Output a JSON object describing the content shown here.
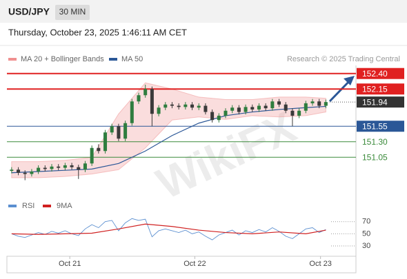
{
  "header": {
    "symbol": "USD/JPY",
    "interval": "30 MIN",
    "timestamp": "Thursday, October 23, 2025 1:46:11 AM CET",
    "watermark": "WikiFX"
  },
  "chart_data": [
    {
      "type": "candlestick",
      "source": "Research © 2025 Trading Central",
      "xlim": [
        -0.5,
        51.5
      ],
      "ylim": [
        150.42,
        152.53
      ],
      "xticks": [
        {
          "value": 8.7,
          "label": "Oct 21"
        },
        {
          "value": 27.4,
          "label": "Oct 22"
        },
        {
          "value": 46.2,
          "label": "Oct 23"
        }
      ],
      "up_color": "#2f7d3f",
      "down_color": "#3a3a3a",
      "candles": {
        "open": [
          150.83,
          150.85,
          150.8,
          150.78,
          150.82,
          150.88,
          150.86,
          150.9,
          150.88,
          150.92,
          150.89,
          150.85,
          150.95,
          151.2,
          151.15,
          151.45,
          151.55,
          151.35,
          151.6,
          151.95,
          152.05,
          152.15,
          151.75,
          151.85,
          151.9,
          151.88,
          151.86,
          151.9,
          151.85,
          151.88,
          151.78,
          151.65,
          151.72,
          151.8,
          151.85,
          151.78,
          151.86,
          151.82,
          151.88,
          151.84,
          151.95,
          151.9,
          151.8,
          151.72,
          151.8,
          151.92,
          151.95,
          151.88
        ],
        "high": [
          150.89,
          150.89,
          150.84,
          150.86,
          150.92,
          150.92,
          150.94,
          150.94,
          150.96,
          150.96,
          150.93,
          150.99,
          151.24,
          151.26,
          151.49,
          151.59,
          151.59,
          151.64,
          151.99,
          152.09,
          152.22,
          152.19,
          151.89,
          151.94,
          151.94,
          151.92,
          151.94,
          151.94,
          151.92,
          151.92,
          151.82,
          151.76,
          151.84,
          151.89,
          151.89,
          151.9,
          151.9,
          151.92,
          151.92,
          151.99,
          151.99,
          151.94,
          151.84,
          151.84,
          151.96,
          151.99,
          151.99,
          151.98
        ],
        "low": [
          150.79,
          150.76,
          150.68,
          150.74,
          150.78,
          150.82,
          150.82,
          150.84,
          150.84,
          150.85,
          150.7,
          150.81,
          150.91,
          151.11,
          151.11,
          151.41,
          151.31,
          151.31,
          151.56,
          151.91,
          152.01,
          151.55,
          151.71,
          151.81,
          151.84,
          151.82,
          151.82,
          151.81,
          151.81,
          151.74,
          151.61,
          151.61,
          151.68,
          151.76,
          151.74,
          151.74,
          151.78,
          151.78,
          151.8,
          151.8,
          151.86,
          151.76,
          151.55,
          151.68,
          151.76,
          151.88,
          151.84,
          151.84
        ],
        "close": [
          150.85,
          150.8,
          150.78,
          150.82,
          150.88,
          150.86,
          150.9,
          150.88,
          150.92,
          150.89,
          150.85,
          150.95,
          151.2,
          151.15,
          151.45,
          151.55,
          151.35,
          151.6,
          151.95,
          152.05,
          152.15,
          151.75,
          151.85,
          151.9,
          151.88,
          151.86,
          151.9,
          151.85,
          151.88,
          151.78,
          151.65,
          151.72,
          151.8,
          151.85,
          151.78,
          151.86,
          151.82,
          151.88,
          151.84,
          151.95,
          151.9,
          151.8,
          151.72,
          151.8,
          151.92,
          151.95,
          151.88,
          151.94
        ]
      },
      "series": [
        {
          "name": "MA 20 + Bollinger Bands",
          "color": "#f09090",
          "x": [
            0,
            4,
            8,
            12,
            16,
            20,
            24,
            28,
            32,
            36,
            40,
            44,
            47
          ],
          "upper": [
            150.98,
            150.98,
            151.0,
            151.05,
            151.75,
            152.25,
            152.15,
            152.02,
            151.98,
            151.98,
            152.02,
            152.02,
            152.0
          ],
          "lower": [
            150.72,
            150.72,
            150.74,
            150.78,
            150.85,
            151.2,
            151.65,
            151.7,
            151.66,
            151.72,
            151.7,
            151.72,
            151.78
          ]
        },
        {
          "name": "MA 50",
          "color": "#2b5797",
          "x": [
            0,
            4,
            8,
            12,
            16,
            20,
            24,
            28,
            32,
            36,
            40,
            44,
            47
          ],
          "values": [
            150.8,
            150.82,
            150.84,
            150.86,
            150.95,
            151.15,
            151.4,
            151.6,
            151.72,
            151.78,
            151.82,
            151.85,
            151.87
          ]
        }
      ],
      "levels": [
        {
          "value": 152.4,
          "label": "152.40",
          "color": "#e02020",
          "style": "box"
        },
        {
          "value": 152.15,
          "label": "152.15",
          "color": "#e02020",
          "style": "box"
        },
        {
          "value": 151.94,
          "label": "151.94",
          "color": "#333333",
          "style": "current"
        },
        {
          "value": 151.55,
          "label": "151.55",
          "color": "#2b5797",
          "style": "box"
        },
        {
          "value": 151.3,
          "label": "151.30",
          "color": "#3a8a3a",
          "style": "text"
        },
        {
          "value": 151.05,
          "label": "151.05",
          "color": "#3a8a3a",
          "style": "text"
        }
      ]
    },
    {
      "type": "line",
      "xlim": [
        -0.5,
        51.5
      ],
      "ylim": [
        13,
        81
      ],
      "yticks": [
        70,
        50,
        30
      ],
      "series": [
        {
          "name": "RSI",
          "color": "#5b8fd0",
          "values": [
            50,
            46,
            44,
            48,
            52,
            49,
            54,
            51,
            55,
            50,
            47,
            58,
            65,
            60,
            70,
            72,
            55,
            68,
            75,
            72,
            74,
            45,
            55,
            58,
            55,
            52,
            56,
            50,
            53,
            46,
            40,
            48,
            52,
            56,
            48,
            55,
            52,
            57,
            53,
            60,
            54,
            46,
            42,
            50,
            58,
            60,
            52,
            57
          ]
        },
        {
          "name": "9MA",
          "color": "#d02020",
          "x": [
            0,
            4,
            8,
            12,
            16,
            20,
            24,
            28,
            32,
            36,
            40,
            44,
            47
          ],
          "values": [
            50,
            49,
            50,
            51,
            58,
            66,
            62,
            56,
            52,
            50,
            53,
            50,
            56
          ]
        }
      ]
    }
  ]
}
